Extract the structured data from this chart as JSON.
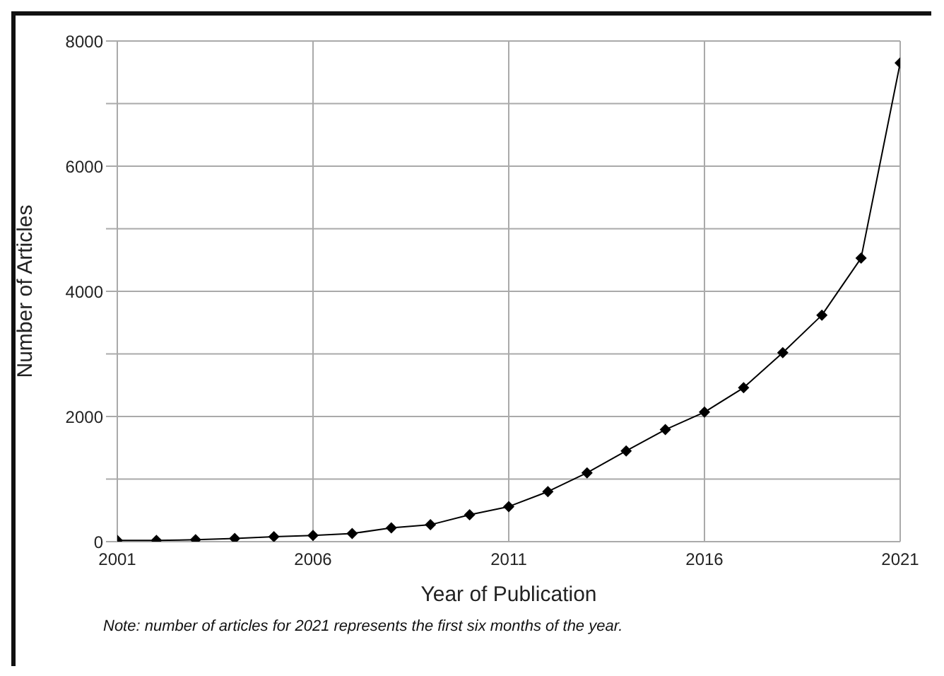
{
  "chart_data": {
    "type": "line",
    "xlabel": "Year of Publication",
    "ylabel": "Number of Articles",
    "annotations": [
      "Note: number of articles for 2021 represents the first six months of the year."
    ],
    "x": [
      2001,
      2002,
      2003,
      2004,
      2005,
      2006,
      2007,
      2008,
      2009,
      2010,
      2011,
      2012,
      2013,
      2014,
      2015,
      2016,
      2017,
      2018,
      2019,
      2020,
      2021
    ],
    "series": [
      {
        "color": "#000000",
        "values": [
          20,
          20,
          30,
          50,
          80,
          100,
          130,
          220,
          270,
          430,
          560,
          800,
          1100,
          1450,
          1790,
          2070,
          2460,
          3020,
          3620,
          4530,
          7650
        ]
      }
    ],
    "xlim": [
      2001,
      2021
    ],
    "xticks": [
      2001,
      2006,
      2011,
      2016,
      2021
    ],
    "ylim": [
      0,
      8000
    ],
    "yticks": [
      0,
      {
        "value": 1000,
        "label": null
      },
      2000,
      {
        "value": 3000,
        "label": null
      },
      4000,
      {
        "value": 5000,
        "label": null
      },
      6000,
      {
        "value": 7000,
        "label": null
      },
      8000
    ],
    "grid": true,
    "marker": "diamond",
    "line_style": "solid",
    "legend": false
  }
}
